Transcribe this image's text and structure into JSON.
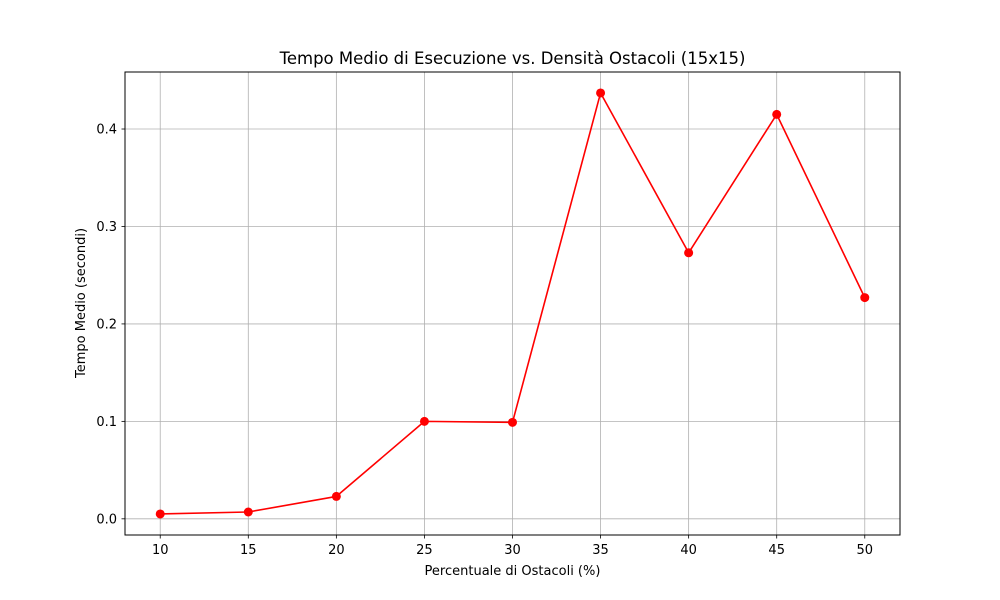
{
  "chart_data": {
    "type": "line",
    "title": "Tempo Medio di Esecuzione vs. Densità Ostacoli (15x15)",
    "xlabel": "Percentuale di Ostacoli (%)",
    "ylabel": "Tempo Medio (secondi)",
    "x": [
      10,
      15,
      20,
      25,
      30,
      35,
      40,
      45,
      50
    ],
    "series": [
      {
        "values": [
          0.005,
          0.007,
          0.023,
          0.1,
          0.099,
          0.437,
          0.273,
          0.415,
          0.227
        ],
        "color": "#ff0000",
        "marker": "circle"
      }
    ],
    "xlim": [
      8,
      52
    ],
    "ylim": [
      -0.0166,
      0.4585
    ],
    "xticks": [
      10,
      15,
      20,
      25,
      30,
      35,
      40,
      45,
      50
    ],
    "yticks": [
      0.0,
      0.1,
      0.2,
      0.3,
      0.4
    ],
    "ytick_labels": [
      "0.0",
      "0.1",
      "0.2",
      "0.3",
      "0.4"
    ],
    "grid": true,
    "grid_color": "#b0b0b0"
  }
}
